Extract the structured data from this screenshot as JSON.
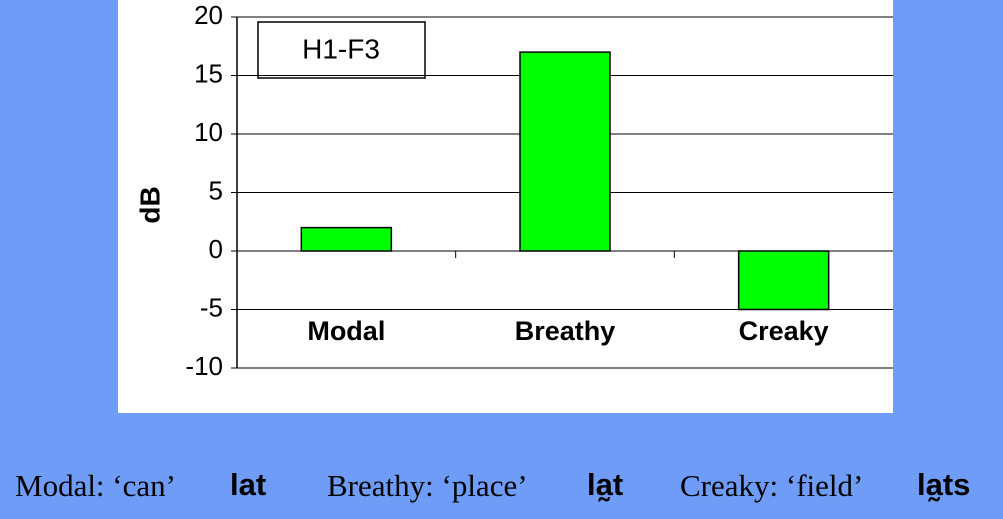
{
  "chart_data": {
    "type": "bar",
    "title": "H1-F3",
    "y_label": "dB",
    "categories": [
      "Modal",
      "Breathy",
      "Creaky"
    ],
    "values": [
      2,
      17,
      -5
    ],
    "color": "#00ff00",
    "ylim": [
      -10,
      20
    ],
    "yticks": [
      -10,
      -5,
      0,
      5,
      10,
      15,
      20
    ],
    "grid": true
  },
  "caption": [
    {
      "label": "Modal: ‘can’",
      "word": "lat"
    },
    {
      "label": "Breathy: ‘place’",
      "word": "la̰t"
    },
    {
      "label": "Creaky: ‘field’",
      "word": "la̰ts"
    }
  ]
}
